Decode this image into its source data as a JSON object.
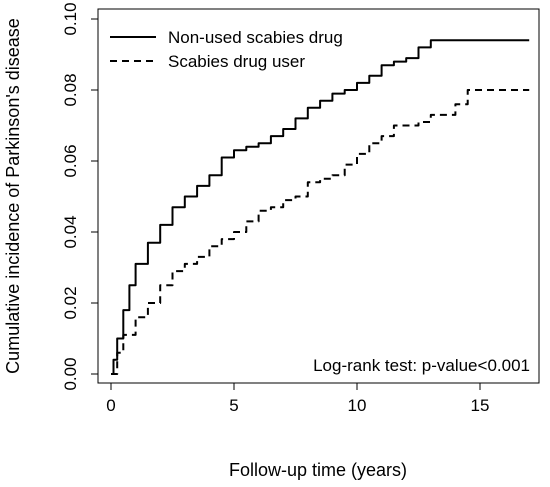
{
  "chart_data": {
    "type": "line",
    "xlabel": "Follow-up time (years)",
    "ylabel": "Cumulative incidence of Parkinson's disease",
    "xlim": [
      0,
      17
    ],
    "ylim": [
      0,
      0.1
    ],
    "x_ticks": [
      "0",
      "5",
      "10",
      "15"
    ],
    "y_ticks": [
      "0.00",
      "0.02",
      "0.04",
      "0.06",
      "0.08",
      "0.10"
    ],
    "grid": false,
    "legend": "top-left",
    "annotation": "Log-rank test: p-value<0.001",
    "series": [
      {
        "name": "Non-used scabies drug",
        "style": "solid",
        "points": [
          [
            0,
            0
          ],
          [
            0.1,
            0.004
          ],
          [
            0.25,
            0.01
          ],
          [
            0.5,
            0.018
          ],
          [
            0.75,
            0.025
          ],
          [
            1,
            0.031
          ],
          [
            1.5,
            0.037
          ],
          [
            2,
            0.042
          ],
          [
            2.5,
            0.047
          ],
          [
            3,
            0.05
          ],
          [
            3.5,
            0.053
          ],
          [
            4,
            0.056
          ],
          [
            4.5,
            0.061
          ],
          [
            5,
            0.063
          ],
          [
            5.5,
            0.064
          ],
          [
            6,
            0.065
          ],
          [
            6.5,
            0.067
          ],
          [
            7,
            0.069
          ],
          [
            7.5,
            0.072
          ],
          [
            8,
            0.075
          ],
          [
            8.5,
            0.077
          ],
          [
            9,
            0.079
          ],
          [
            9.5,
            0.08
          ],
          [
            10,
            0.082
          ],
          [
            10.5,
            0.084
          ],
          [
            11,
            0.087
          ],
          [
            11.5,
            0.088
          ],
          [
            12,
            0.089
          ],
          [
            12.5,
            0.092
          ],
          [
            13,
            0.094
          ],
          [
            14,
            0.094
          ],
          [
            15,
            0.094
          ],
          [
            16,
            0.094
          ],
          [
            17,
            0.094
          ]
        ]
      },
      {
        "name": "Scabies drug user",
        "style": "dashed",
        "points": [
          [
            0,
            0
          ],
          [
            0.25,
            0.006
          ],
          [
            0.5,
            0.011
          ],
          [
            1,
            0.016
          ],
          [
            1.5,
            0.02
          ],
          [
            2,
            0.025
          ],
          [
            2.5,
            0.029
          ],
          [
            3,
            0.031
          ],
          [
            3.5,
            0.033
          ],
          [
            4,
            0.036
          ],
          [
            4.5,
            0.038
          ],
          [
            5,
            0.04
          ],
          [
            5.5,
            0.043
          ],
          [
            6,
            0.046
          ],
          [
            6.5,
            0.047
          ],
          [
            7,
            0.049
          ],
          [
            7.5,
            0.05
          ],
          [
            8,
            0.054
          ],
          [
            8.5,
            0.055
          ],
          [
            9,
            0.056
          ],
          [
            9.5,
            0.059
          ],
          [
            10,
            0.062
          ],
          [
            10.5,
            0.065
          ],
          [
            11,
            0.067
          ],
          [
            11.5,
            0.07
          ],
          [
            12,
            0.07
          ],
          [
            12.5,
            0.071
          ],
          [
            13,
            0.073
          ],
          [
            13.5,
            0.073
          ],
          [
            14,
            0.076
          ],
          [
            14.5,
            0.08
          ],
          [
            15,
            0.08
          ],
          [
            16,
            0.08
          ],
          [
            17,
            0.08
          ]
        ]
      }
    ]
  }
}
